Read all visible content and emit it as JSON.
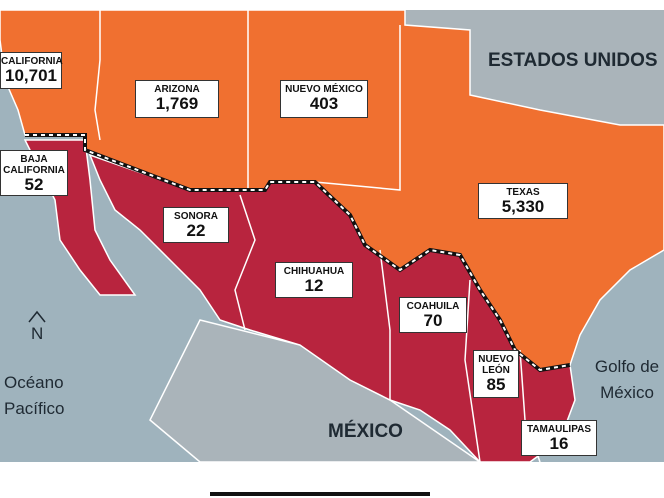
{
  "labels": {
    "us": "ESTADOS UNIDOS",
    "mexico": "MÉXICO",
    "pacific": "Océano Pacífico",
    "gulf": "Golfo de México",
    "north": "N"
  },
  "regions": [
    {
      "name": "CALIFORNIA",
      "value": "10,701"
    },
    {
      "name": "ARIZONA",
      "value": "1,769"
    },
    {
      "name": "NUEVO MÉXICO",
      "value": "403"
    },
    {
      "name": "TEXAS",
      "value": "5,330"
    },
    {
      "name": "BAJA CALIFORNIA",
      "value": "52"
    },
    {
      "name": "SONORA",
      "value": "22"
    },
    {
      "name": "CHIHUAHUA",
      "value": "12"
    },
    {
      "name": "COAHUILA",
      "value": "70"
    },
    {
      "name": "NUEVO LEÓN",
      "value": "85"
    },
    {
      "name": "TAMAULIPAS",
      "value": "16"
    }
  ]
}
